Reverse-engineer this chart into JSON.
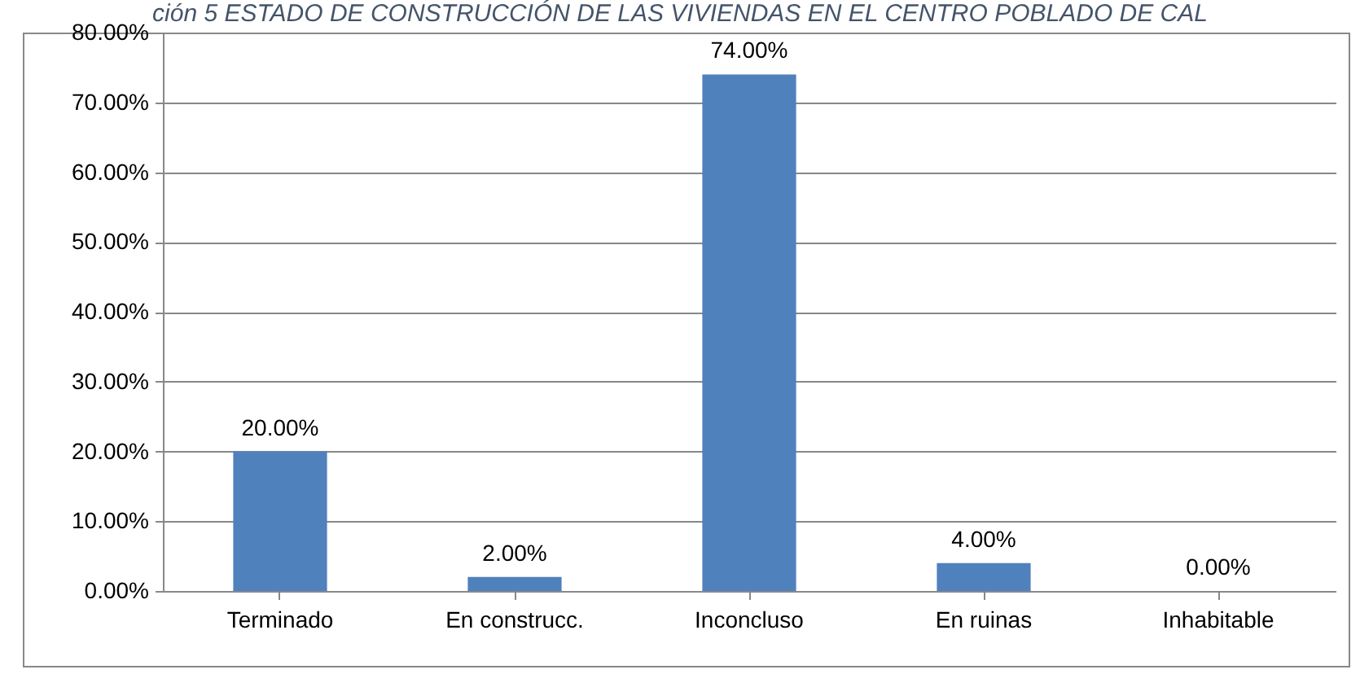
{
  "chart_data": {
    "type": "bar",
    "title": "ción 5 ESTADO DE CONSTRUCCIÓN DE LAS VIVIENDAS EN EL CENTRO POBLADO DE CAL",
    "categories": [
      "Terminado",
      "En construcc.",
      "Inconcluso",
      "En ruinas",
      "Inhabitable"
    ],
    "values": [
      20,
      2,
      74,
      4,
      0
    ],
    "color": "#4f81bd",
    "value_labels": [
      "20.00%",
      "2.00%",
      "74.00%",
      "4.00%",
      "0.00%"
    ],
    "ylim": [
      0,
      80
    ],
    "yticks": [
      {
        "value": 0,
        "label": "0.00%"
      },
      {
        "value": 10,
        "label": "10.00%"
      },
      {
        "value": 20,
        "label": "20.00%"
      },
      {
        "value": 30,
        "label": "30.00%"
      },
      {
        "value": 40,
        "label": "40.00%"
      },
      {
        "value": 50,
        "label": "50.00%"
      },
      {
        "value": 60,
        "label": "60.00%"
      },
      {
        "value": 70,
        "label": "70.00%"
      },
      {
        "value": 80,
        "label": "80.00%"
      }
    ],
    "grid": "y"
  }
}
